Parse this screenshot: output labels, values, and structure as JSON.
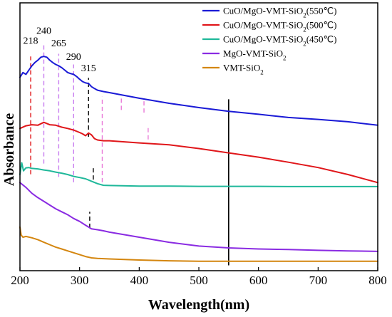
{
  "chart_data": {
    "type": "line",
    "xlabel": "Wavelength(nm)",
    "ylabel": "Absorbance",
    "xlim": [
      200,
      800
    ],
    "ylim": [
      0,
      100
    ],
    "x_ticks": [
      "200",
      "300",
      "400",
      "500",
      "600",
      "700",
      "800"
    ],
    "grid": false,
    "legend_position": "top-right",
    "series": [
      {
        "name": "CuO/MgO-VMT-SiO2(550℃)",
        "legend_text": "CuO/MgO-VMT-SiO",
        "legend_sub": "2",
        "legend_suffix": "(550℃)",
        "color": "#1a1ad6",
        "points": [
          [
            200,
            72.2
          ],
          [
            205,
            74.0
          ],
          [
            210,
            73.3
          ],
          [
            215,
            74.9
          ],
          [
            220,
            76.5
          ],
          [
            225,
            77.7
          ],
          [
            230,
            78.6
          ],
          [
            235,
            79.7
          ],
          [
            240,
            80.0
          ],
          [
            245,
            79.7
          ],
          [
            250,
            78.6
          ],
          [
            255,
            77.7
          ],
          [
            260,
            77.0
          ],
          [
            265,
            76.5
          ],
          [
            270,
            75.8
          ],
          [
            275,
            74.9
          ],
          [
            280,
            74.0
          ],
          [
            285,
            73.6
          ],
          [
            290,
            73.3
          ],
          [
            295,
            72.5
          ],
          [
            300,
            71.5
          ],
          [
            305,
            70.6
          ],
          [
            310,
            70.1
          ],
          [
            315,
            69.9
          ],
          [
            320,
            68.7
          ],
          [
            325,
            68.0
          ],
          [
            330,
            67.4
          ],
          [
            340,
            66.9
          ],
          [
            350,
            66.5
          ],
          [
            400,
            64.4
          ],
          [
            450,
            62.5
          ],
          [
            500,
            60.9
          ],
          [
            550,
            59.5
          ],
          [
            600,
            58.4
          ],
          [
            650,
            57.2
          ],
          [
            700,
            56.5
          ],
          [
            750,
            55.6
          ],
          [
            800,
            54.3
          ]
        ]
      },
      {
        "name": "CuO/MgO-VMT-SiO2(500℃)",
        "legend_text": "CuO/MgO-VMT-SiO",
        "legend_sub": "2",
        "legend_suffix": "(500℃)",
        "color": "#e0161a",
        "points": [
          [
            200,
            53.1
          ],
          [
            210,
            54.1
          ],
          [
            220,
            54.5
          ],
          [
            230,
            54.3
          ],
          [
            240,
            55.4
          ],
          [
            250,
            54.5
          ],
          [
            260,
            54.3
          ],
          [
            270,
            53.6
          ],
          [
            280,
            53.1
          ],
          [
            290,
            52.5
          ],
          [
            300,
            51.6
          ],
          [
            305,
            51.1
          ],
          [
            310,
            50.4
          ],
          [
            315,
            51.4
          ],
          [
            320,
            50.7
          ],
          [
            325,
            49.3
          ],
          [
            330,
            48.8
          ],
          [
            340,
            48.5
          ],
          [
            350,
            48.5
          ],
          [
            400,
            47.7
          ],
          [
            450,
            47.0
          ],
          [
            500,
            45.6
          ],
          [
            550,
            44.0
          ],
          [
            600,
            42.4
          ],
          [
            650,
            40.5
          ],
          [
            700,
            38.5
          ],
          [
            750,
            35.9
          ],
          [
            800,
            32.9
          ]
        ]
      },
      {
        "name": "CuO/MgO-VMT-SiO2(450℃)",
        "legend_text": "CuO/MgO-VMT-SiO",
        "legend_sub": "2",
        "legend_suffix": "(450℃)",
        "color": "#1fb89a",
        "points": [
          [
            200,
            35.9
          ],
          [
            203,
            40.3
          ],
          [
            206,
            37.3
          ],
          [
            210,
            38.4
          ],
          [
            215,
            38.5
          ],
          [
            220,
            38.2
          ],
          [
            230,
            38.0
          ],
          [
            240,
            37.6
          ],
          [
            250,
            37.3
          ],
          [
            260,
            36.8
          ],
          [
            270,
            36.4
          ],
          [
            280,
            35.9
          ],
          [
            290,
            35.2
          ],
          [
            300,
            34.8
          ],
          [
            310,
            34.3
          ],
          [
            320,
            33.4
          ],
          [
            330,
            32.5
          ],
          [
            340,
            31.9
          ],
          [
            350,
            31.8
          ],
          [
            400,
            31.6
          ],
          [
            450,
            31.6
          ],
          [
            500,
            31.5
          ],
          [
            550,
            31.5
          ],
          [
            600,
            31.5
          ],
          [
            650,
            31.4
          ],
          [
            700,
            31.4
          ],
          [
            750,
            31.4
          ],
          [
            800,
            31.4
          ]
        ]
      },
      {
        "name": "MgO-VMT-SiO2",
        "legend_text": "MgO-VMT-SiO",
        "legend_sub": "2",
        "legend_suffix": "",
        "color": "#8a2be2",
        "points": [
          [
            200,
            32.9
          ],
          [
            210,
            31.1
          ],
          [
            220,
            28.9
          ],
          [
            230,
            27.3
          ],
          [
            240,
            25.9
          ],
          [
            250,
            24.5
          ],
          [
            260,
            23.1
          ],
          [
            270,
            22.0
          ],
          [
            280,
            20.9
          ],
          [
            290,
            19.5
          ],
          [
            300,
            18.4
          ],
          [
            310,
            17.0
          ],
          [
            320,
            15.6
          ],
          [
            330,
            15.3
          ],
          [
            340,
            14.9
          ],
          [
            350,
            14.4
          ],
          [
            400,
            12.5
          ],
          [
            450,
            10.6
          ],
          [
            500,
            9.2
          ],
          [
            550,
            8.5
          ],
          [
            600,
            8.1
          ],
          [
            650,
            7.9
          ],
          [
            700,
            7.6
          ],
          [
            750,
            7.4
          ],
          [
            800,
            7.2
          ]
        ]
      },
      {
        "name": "VMT-SiO2",
        "legend_text": "VMT-SiO",
        "legend_sub": "2",
        "legend_suffix": "",
        "color": "#d4860f",
        "points": [
          [
            200,
            16.3
          ],
          [
            202,
            13.3
          ],
          [
            205,
            12.5
          ],
          [
            210,
            12.8
          ],
          [
            220,
            12.3
          ],
          [
            230,
            11.6
          ],
          [
            240,
            10.6
          ],
          [
            250,
            9.7
          ],
          [
            260,
            8.8
          ],
          [
            270,
            8.1
          ],
          [
            280,
            7.4
          ],
          [
            290,
            6.7
          ],
          [
            300,
            6.0
          ],
          [
            310,
            5.3
          ],
          [
            320,
            4.8
          ],
          [
            330,
            4.6
          ],
          [
            350,
            4.4
          ],
          [
            400,
            4.0
          ],
          [
            450,
            3.7
          ],
          [
            500,
            3.5
          ],
          [
            550,
            3.5
          ],
          [
            600,
            3.5
          ],
          [
            650,
            3.5
          ],
          [
            700,
            3.5
          ],
          [
            750,
            3.5
          ],
          [
            800,
            3.5
          ]
        ]
      }
    ],
    "peak_labels": [
      {
        "text": "218",
        "x": 218,
        "y": 84.7
      },
      {
        "text": "240",
        "x": 240,
        "y": 88.4
      },
      {
        "text": "265",
        "x": 265,
        "y": 83.8
      },
      {
        "text": "290",
        "x": 290,
        "y": 78.7
      },
      {
        "text": "315",
        "x": 315,
        "y": 74.5
      }
    ],
    "markers": [
      {
        "x": 218,
        "y1": 36,
        "y2": 80,
        "color": "#e0161a",
        "dashed": true
      },
      {
        "x": 240,
        "y1": 40,
        "y2": 85,
        "color": "#c97ef0",
        "dashed": true
      },
      {
        "x": 265,
        "y1": 35,
        "y2": 81,
        "color": "#c97ef0",
        "dashed": true
      },
      {
        "x": 290,
        "y1": 33,
        "y2": 77,
        "color": "#c97ef0",
        "dashed": true
      },
      {
        "x": 315,
        "y1": 50,
        "y2": 72,
        "color": "#000000",
        "dashed": true
      },
      {
        "x": 338,
        "y1": 33,
        "y2": 65,
        "color": "#e97ad8",
        "dashed": true
      },
      {
        "x": 370,
        "y1": 60,
        "y2": 65,
        "color": "#e97ad8",
        "dashed": true
      },
      {
        "x": 408,
        "y1": 59,
        "y2": 64,
        "color": "#e97ad8",
        "dashed": true
      },
      {
        "x": 415,
        "y1": 49,
        "y2": 54,
        "color": "#e97ad8",
        "dashed": true
      },
      {
        "x": 323,
        "y1": 34,
        "y2": 39,
        "color": "#000000",
        "dashed": true
      },
      {
        "x": 317,
        "y1": 16,
        "y2": 22,
        "color": "#000000",
        "dashed": true
      },
      {
        "x": 550,
        "y1": 2,
        "y2": 64,
        "color": "#000000",
        "dashed": false
      }
    ]
  }
}
